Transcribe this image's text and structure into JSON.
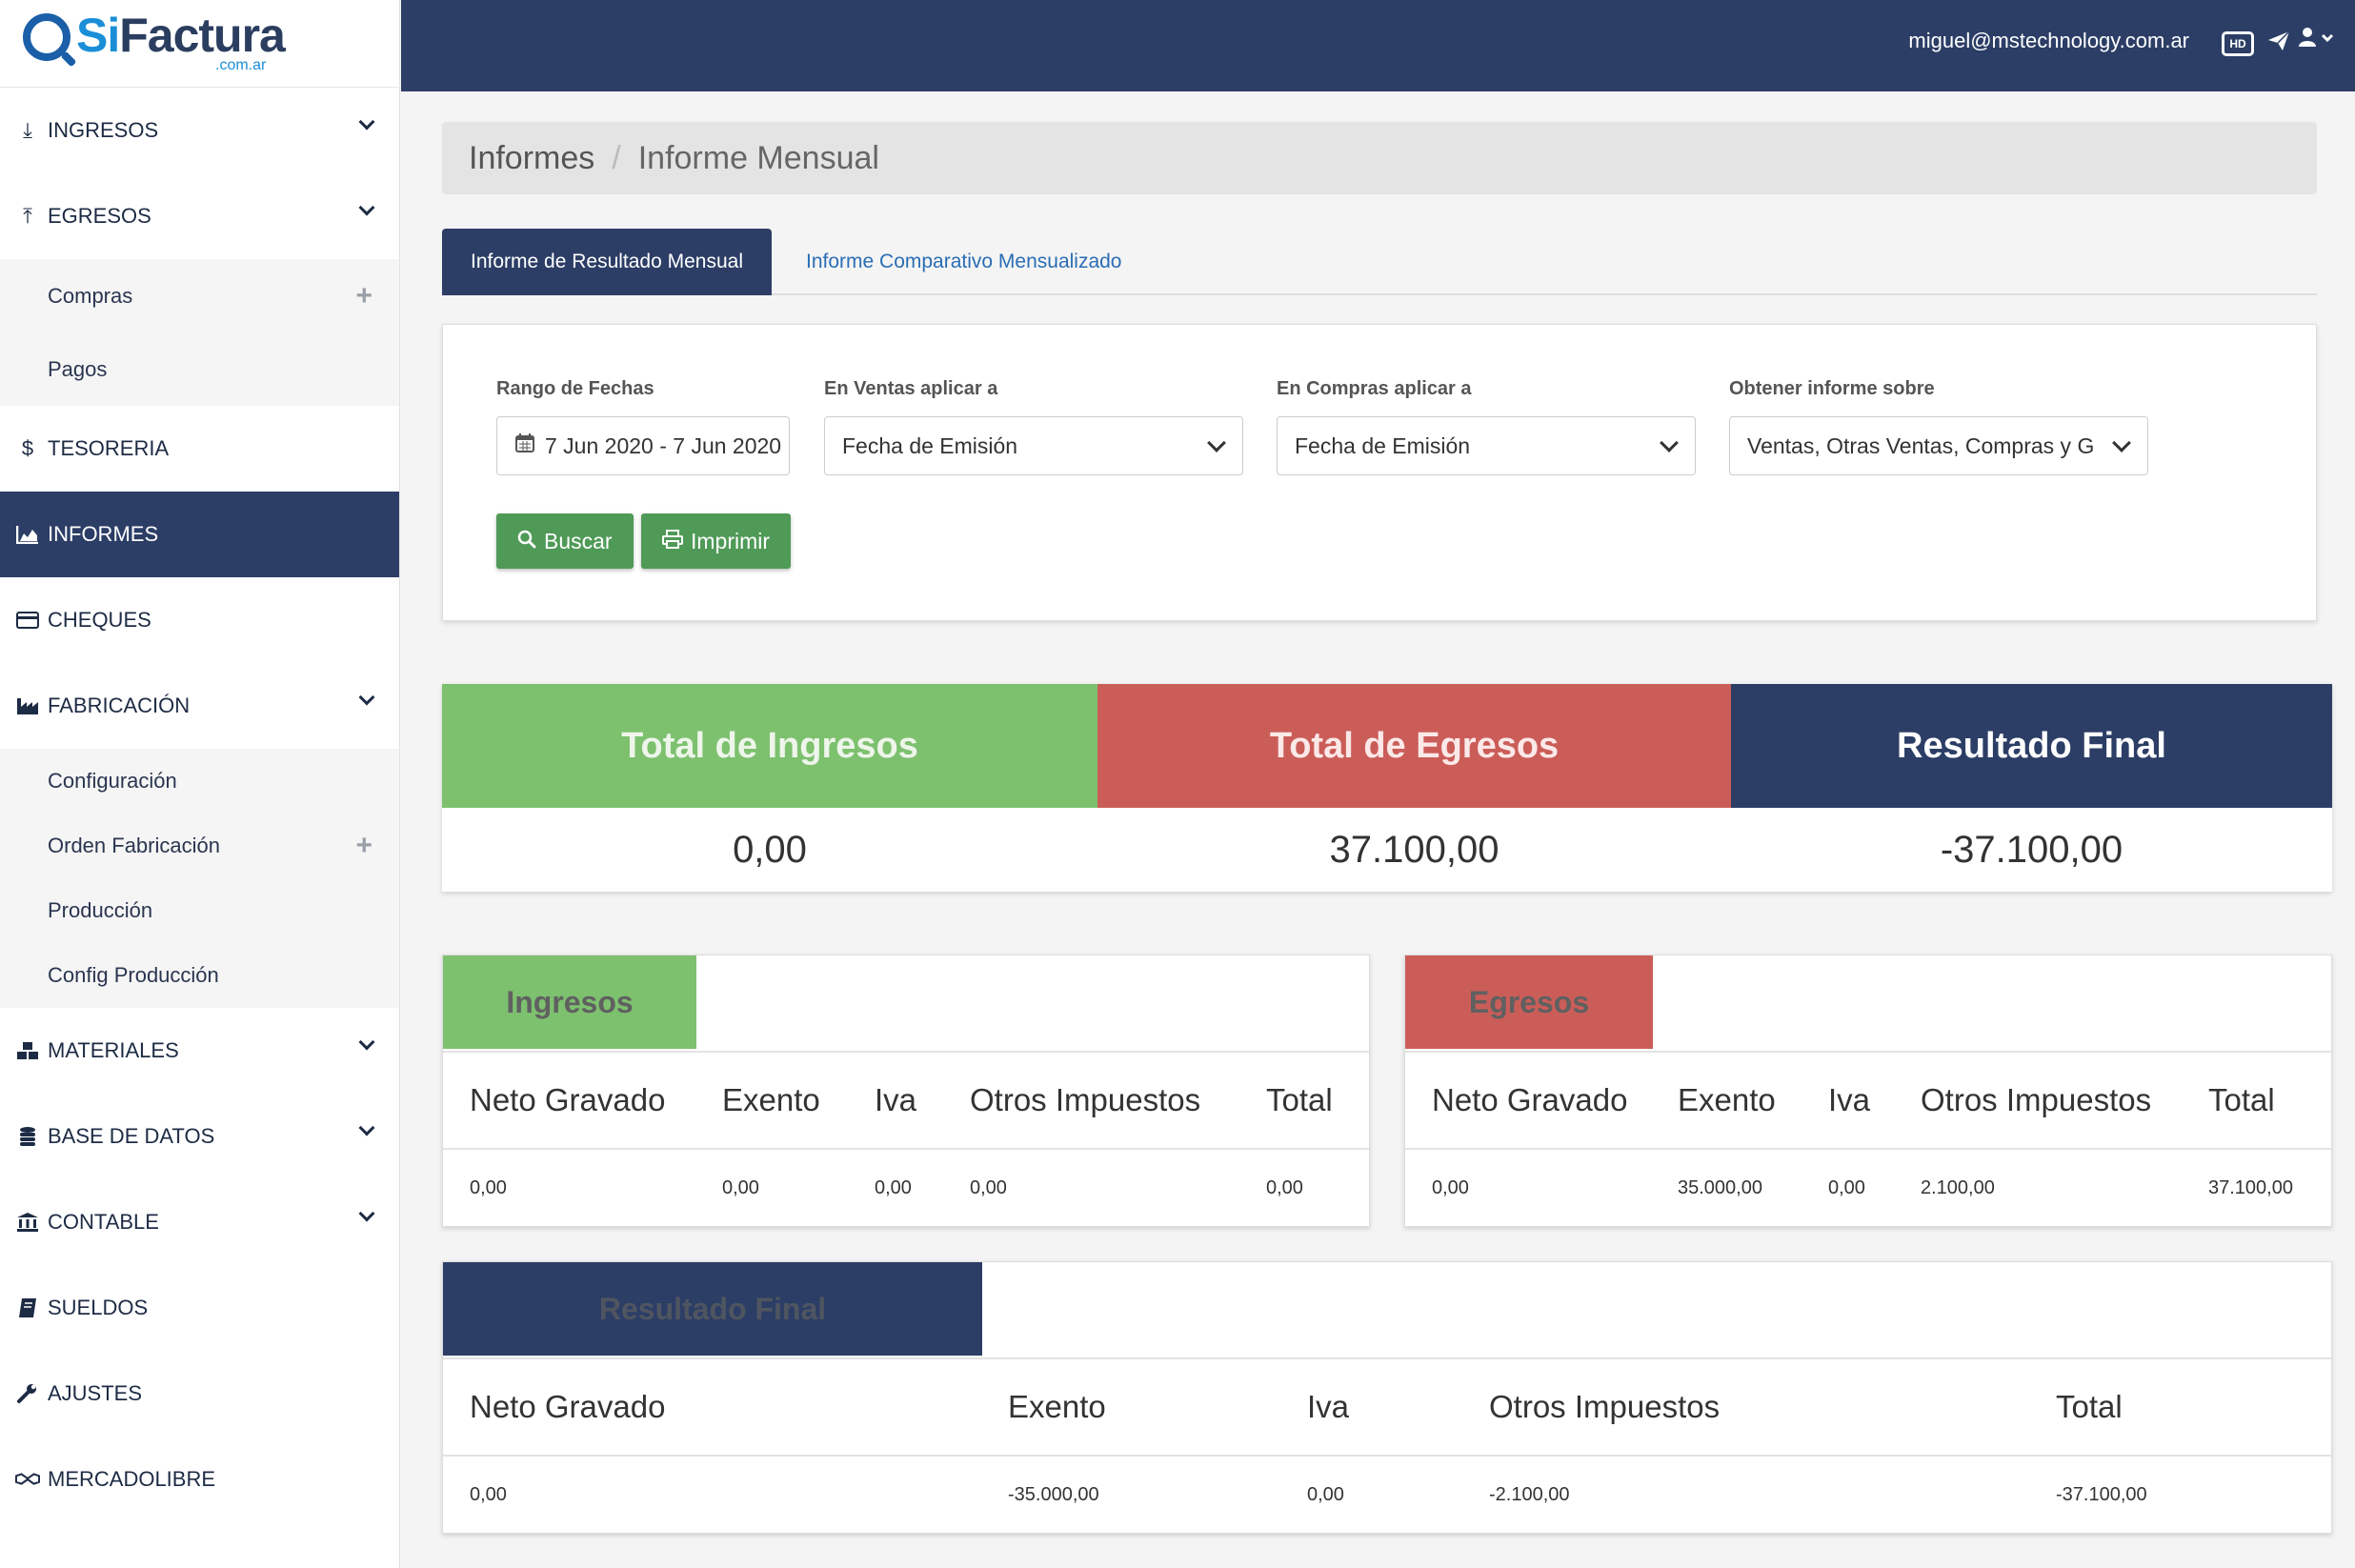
{
  "app": {
    "logo_si": "Si",
    "logo_factura": "Factura",
    "logo_sub": ".com.ar"
  },
  "sidebar": {
    "items": [
      {
        "label": "INGRESOS",
        "icon": "download-icon"
      },
      {
        "label": "EGRESOS",
        "icon": "upload-icon"
      },
      {
        "label": "Compras",
        "icon": "plus-icon"
      },
      {
        "label": "Pagos"
      },
      {
        "label": "TESORERIA",
        "icon": "dollar-icon"
      },
      {
        "label": "INFORMES",
        "icon": "area-chart-icon"
      },
      {
        "label": "CHEQUES",
        "icon": "credit-card-icon"
      },
      {
        "label": "FABRICACIÓN",
        "icon": "industry-icon"
      },
      {
        "label": "Configuración"
      },
      {
        "label": "Orden Fabricación",
        "icon": "plus-icon"
      },
      {
        "label": "Producción"
      },
      {
        "label": "Config Producción"
      },
      {
        "label": "MATERIALES",
        "icon": "cubes-icon"
      },
      {
        "label": "BASE DE DATOS",
        "icon": "database-icon"
      },
      {
        "label": "CONTABLE",
        "icon": "bank-icon"
      },
      {
        "label": "SUELDOS",
        "icon": "book-icon"
      },
      {
        "label": "AJUSTES",
        "icon": "wrench-icon"
      },
      {
        "label": "MERCADOLIBRE",
        "icon": "handshake-icon"
      }
    ]
  },
  "topbar": {
    "email": "miguel@mstechnology.com.ar",
    "hd_label": "HD"
  },
  "breadcrumb": {
    "parent": "Informes",
    "current": "Informe Mensual"
  },
  "tabs": {
    "active": "Informe de Resultado Mensual",
    "other": "Informe Comparativo Mensualizado"
  },
  "filters": {
    "date_range_label": "Rango de Fechas",
    "date_range_value": "7 Jun 2020 - 7 Jun 2020",
    "ventas_label": "En Ventas aplicar a",
    "ventas_value": "Fecha de Emisión",
    "compras_label": "En Compras aplicar a",
    "compras_value": "Fecha de Emisión",
    "informe_label": "Obtener informe sobre",
    "informe_value": "Ventas, Otras Ventas, Compras y Gastos",
    "buscar_label": "Buscar",
    "imprimir_label": "Imprimir"
  },
  "summary": {
    "ingresos_title": "Total de Ingresos",
    "ingresos_value": "0,00",
    "egresos_title": "Total de Egresos",
    "egresos_value": "37.100,00",
    "resultado_title": "Resultado Final",
    "resultado_value": "-37.100,00"
  },
  "tables": {
    "columns": [
      "Neto Gravado",
      "Exento",
      "Iva",
      "Otros Impuestos",
      "Total"
    ],
    "ingresos": {
      "title": "Ingresos",
      "values": [
        "0,00",
        "0,00",
        "0,00",
        "0,00",
        "0,00"
      ]
    },
    "egresos": {
      "title": "Egresos",
      "values": [
        "0,00",
        "35.000,00",
        "0,00",
        "2.100,00",
        "37.100,00"
      ]
    },
    "resultado": {
      "title": "Resultado Final",
      "values": [
        "0,00",
        "-35.000,00",
        "0,00",
        "-2.100,00",
        "-37.100,00"
      ]
    }
  },
  "colors": {
    "navy": "#2c3e66",
    "green": "#7dc16f",
    "red": "#cb5d59",
    "button_green": "#4f9a57"
  }
}
